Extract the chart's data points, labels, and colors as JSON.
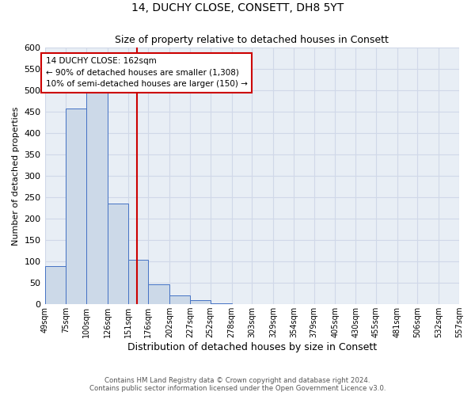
{
  "title": "14, DUCHY CLOSE, CONSETT, DH8 5YT",
  "subtitle": "Size of property relative to detached houses in Consett",
  "xlabel": "Distribution of detached houses by size in Consett",
  "ylabel": "Number of detached properties",
  "property_size": 162,
  "annotation_line1": "14 DUCHY CLOSE: 162sqm",
  "annotation_line2": "← 90% of detached houses are smaller (1,308)",
  "annotation_line3": "10% of semi-detached houses are larger (150) →",
  "bin_edges": [
    49,
    75,
    100,
    126,
    151,
    176,
    202,
    227,
    252,
    278,
    303,
    329,
    354,
    379,
    405,
    430,
    455,
    481,
    506,
    532,
    557
  ],
  "bin_counts": [
    90,
    457,
    500,
    236,
    104,
    46,
    20,
    10,
    3,
    1,
    0,
    0,
    0,
    0,
    0,
    0,
    0,
    0,
    0,
    1
  ],
  "bar_facecolor": "#ccd9e8",
  "bar_edgecolor": "#4472c4",
  "grid_color": "#d0d8e8",
  "vline_color": "#cc0000",
  "annotation_box_edgecolor": "#cc0000",
  "background_color": "#e8eef5",
  "ylim": [
    0,
    600
  ],
  "yticks": [
    0,
    50,
    100,
    150,
    200,
    250,
    300,
    350,
    400,
    450,
    500,
    550,
    600
  ],
  "footer_line1": "Contains HM Land Registry data © Crown copyright and database right 2024.",
  "footer_line2": "Contains public sector information licensed under the Open Government Licence v3.0.",
  "tick_labels": [
    "49sqm",
    "75sqm",
    "100sqm",
    "126sqm",
    "151sqm",
    "176sqm",
    "202sqm",
    "227sqm",
    "252sqm",
    "278sqm",
    "303sqm",
    "329sqm",
    "354sqm",
    "379sqm",
    "405sqm",
    "430sqm",
    "455sqm",
    "481sqm",
    "506sqm",
    "532sqm",
    "557sqm"
  ]
}
